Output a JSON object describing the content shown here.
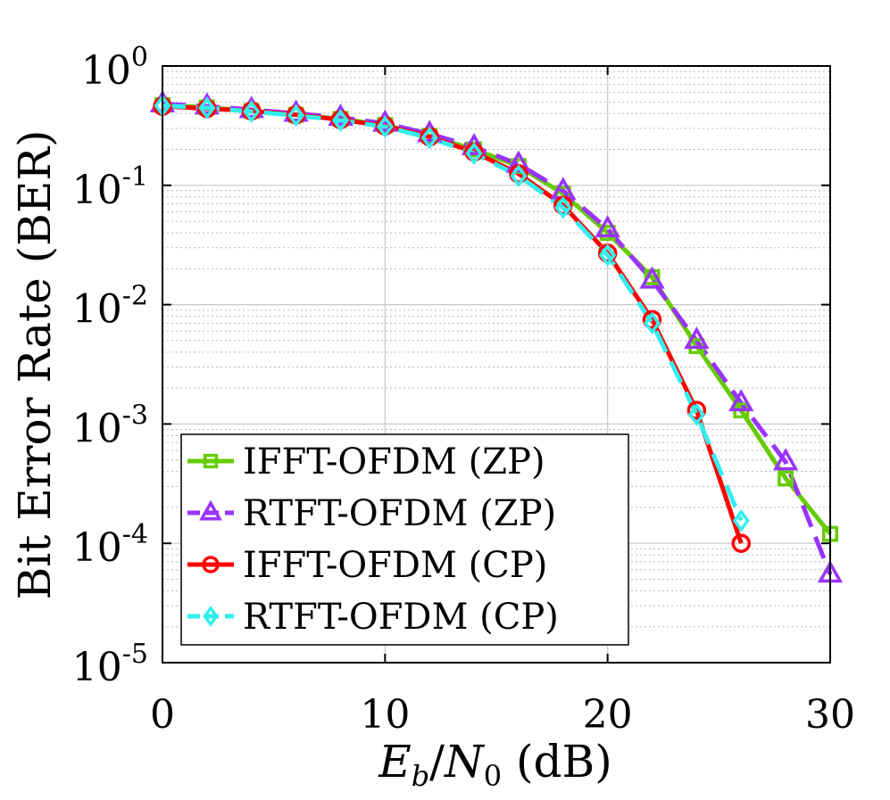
{
  "chart_data": {
    "type": "line",
    "title": "",
    "xlabel": {
      "base": "E",
      "sub": "b",
      "sep": "/",
      "base2": "N",
      "sub2": "0",
      "unit": " (dB)"
    },
    "ylabel": "Bit Error Rate (BER)",
    "xlim": [
      0,
      30
    ],
    "ylim": [
      1e-05,
      1
    ],
    "yscale": "log",
    "grid": true,
    "legend_position": "lower-left",
    "x_ticks": [
      {
        "value": 0,
        "label": "0"
      },
      {
        "value": 10,
        "label": "10"
      },
      {
        "value": 20,
        "label": "20"
      },
      {
        "value": 30,
        "label": "30"
      }
    ],
    "y_ticks": [
      {
        "value": 1,
        "base": "10",
        "exp": "0"
      },
      {
        "value": 0.1,
        "base": "10",
        "exp": "-1"
      },
      {
        "value": 0.01,
        "base": "10",
        "exp": "-2"
      },
      {
        "value": 0.001,
        "base": "10",
        "exp": "-3"
      },
      {
        "value": 0.0001,
        "base": "10",
        "exp": "-4"
      },
      {
        "value": 1e-05,
        "base": "10",
        "exp": "-5"
      }
    ],
    "series": [
      {
        "name": "IFFT-OFDM (ZP)",
        "color": "#66cc00",
        "marker": "square",
        "dash": "solid",
        "x": [
          0,
          2,
          4,
          6,
          8,
          10,
          12,
          14,
          16,
          18,
          20,
          22,
          24,
          26,
          28,
          30
        ],
        "y": [
          0.47,
          0.45,
          0.42,
          0.39,
          0.36,
          0.32,
          0.26,
          0.2,
          0.145,
          0.085,
          0.04,
          0.017,
          0.0045,
          0.0013,
          0.00035,
          0.00012
        ]
      },
      {
        "name": "RTFT-OFDM (ZP)",
        "color": "#9933ff",
        "marker": "triangle",
        "dash": "dashed",
        "x": [
          0,
          2,
          4,
          6,
          8,
          10,
          12,
          14,
          16,
          18,
          20,
          22,
          24,
          26,
          28,
          30
        ],
        "y": [
          0.48,
          0.46,
          0.43,
          0.4,
          0.37,
          0.33,
          0.27,
          0.21,
          0.15,
          0.09,
          0.043,
          0.016,
          0.005,
          0.0015,
          0.00048,
          5.5e-05
        ]
      },
      {
        "name": "IFFT-OFDM (CP)",
        "color": "#ff0000",
        "marker": "circle",
        "dash": "solid",
        "x": [
          0,
          2,
          4,
          6,
          8,
          10,
          12,
          14,
          16,
          18,
          20,
          22,
          24,
          26
        ],
        "y": [
          0.46,
          0.44,
          0.42,
          0.39,
          0.355,
          0.315,
          0.255,
          0.19,
          0.125,
          0.068,
          0.027,
          0.0075,
          0.0013,
          0.0001
        ]
      },
      {
        "name": "RTFT-OFDM (CP)",
        "color": "#33eeee",
        "marker": "diamond",
        "dash": "dashed",
        "x": [
          0,
          2,
          4,
          6,
          8,
          10,
          12,
          14,
          16,
          18,
          20,
          22,
          24,
          26
        ],
        "y": [
          0.465,
          0.445,
          0.415,
          0.385,
          0.35,
          0.31,
          0.25,
          0.185,
          0.12,
          0.065,
          0.026,
          0.007,
          0.0012,
          0.000155
        ]
      }
    ]
  }
}
